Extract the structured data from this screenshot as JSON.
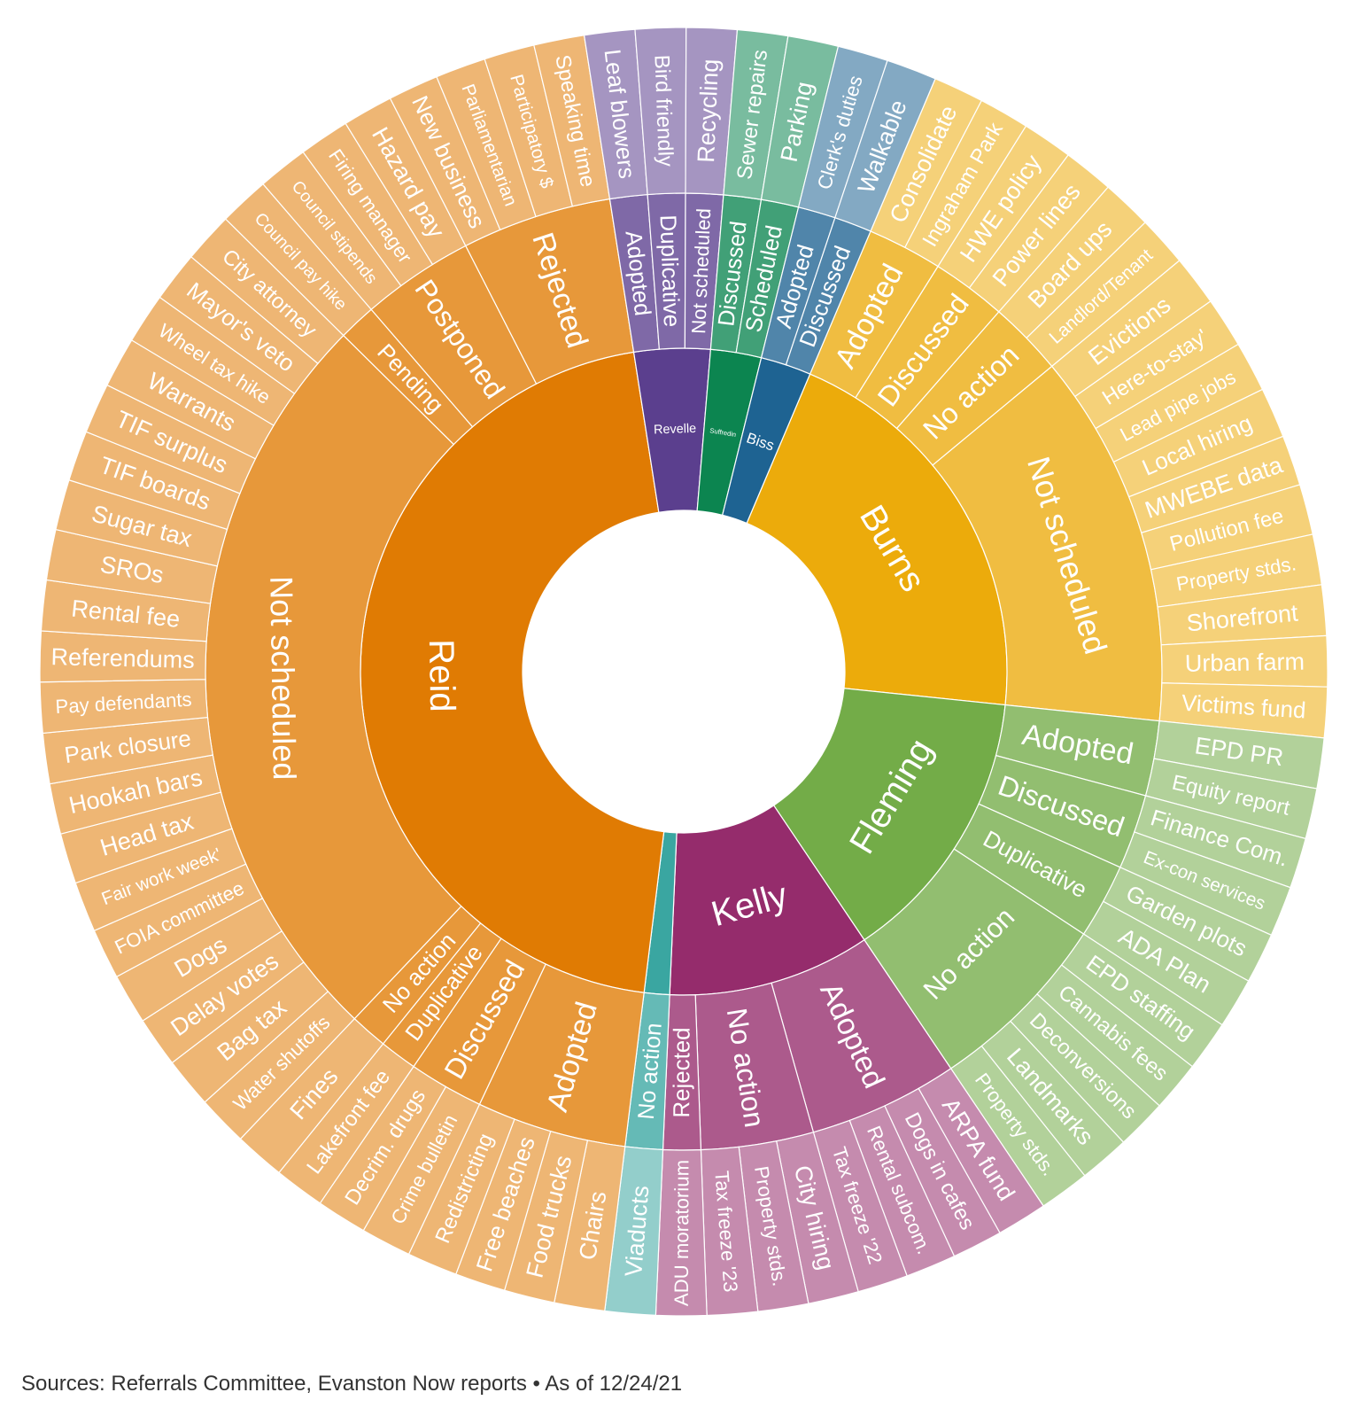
{
  "footer": {
    "source": "Sources: Referrals Committee, Evanston Now reports • As of 12/24/21"
  },
  "chart_data": {
    "type": "sunburst",
    "title": "",
    "start_angle_deg": 23,
    "members": [
      {
        "name": "Burns",
        "color": "#ECAB0B",
        "children": [
          {
            "name": "Adopted",
            "items": [
              "Consolidate",
              "Ingraham Park"
            ]
          },
          {
            "name": "Discussed",
            "items": [
              "HWE policy",
              "Power lines"
            ]
          },
          {
            "name": "No action",
            "items": [
              "Board ups",
              "Landlord/Tenant"
            ]
          },
          {
            "name": "Not scheduled",
            "items": [
              "Evictions",
              "Here-to-stay'",
              "Lead pipe jobs",
              "Local hiring",
              "MWEBE data",
              "Pollution fee",
              "Property stds.",
              "Shorefront",
              "Urban farm",
              "Victims fund"
            ]
          }
        ]
      },
      {
        "name": "Fleming",
        "color": "#73AC48",
        "children": [
          {
            "name": "Adopted",
            "items": [
              "EPD PR",
              "Equity report"
            ]
          },
          {
            "name": "Discussed",
            "items": [
              "Finance Com.",
              "Ex-con services"
            ]
          },
          {
            "name": "Duplicative",
            "items": [
              "Garden plots",
              "ADA Plan"
            ]
          },
          {
            "name": "No action",
            "items": [
              "EPD staffing",
              "Cannabis fees",
              "Deconversions",
              "Landmarks",
              "Property stds."
            ]
          }
        ]
      },
      {
        "name": "Kelly",
        "color": "#952C6C",
        "children": [
          {
            "name": "Adopted",
            "items": [
              "ARPA fund",
              "Dogs in cafes",
              "Rental subcom.",
              "Tax freeze '22"
            ]
          },
          {
            "name": "No action",
            "items": [
              "City hiring",
              "Property stds.",
              "Tax freeze '23"
            ]
          },
          {
            "name": "Rejected",
            "items": [
              "ADU moratorium"
            ]
          }
        ]
      },
      {
        "name": "",
        "color": "#3AA6A1",
        "children": [
          {
            "name": "No action",
            "items": [
              "Viaducts"
            ]
          }
        ]
      },
      {
        "name": "Reid",
        "color": "#E07B03",
        "children": [
          {
            "name": "Adopted",
            "items": [
              "Chairs",
              "Food trucks",
              "Free beaches",
              "Redistricting"
            ]
          },
          {
            "name": "Discussed",
            "items": [
              "Crime bulletin",
              "Decrim. drugs"
            ]
          },
          {
            "name": "Duplicative",
            "items": [
              "Lakefront fee"
            ]
          },
          {
            "name": "No action",
            "items": [
              "Fines"
            ]
          },
          {
            "name": "Not scheduled",
            "items": [
              "Water shutoffs",
              "Bag tax",
              "Delay votes",
              "Dogs",
              "FOIA committee",
              "Fair work week'",
              "Head tax",
              "Hookah bars",
              "Park closure",
              "Pay defendants",
              "Referendums",
              "Rental fee",
              "SROs",
              "Sugar tax",
              "TIF boards",
              "TIF surplus",
              "Warrants",
              "Wheel tax hike",
              "Mayor's veto",
              "City attorney"
            ]
          },
          {
            "name": "Pending",
            "items": [
              "Council pay hike"
            ]
          },
          {
            "name": "Postponed",
            "items": [
              "Council stipends",
              "Firing manager",
              "Hazard pay"
            ]
          },
          {
            "name": "Rejected",
            "items": [
              "New business",
              "Parliamentarian",
              "Participatory $",
              "Speaking time"
            ]
          }
        ]
      },
      {
        "name": "Revelle",
        "color": "#5B3F8E",
        "children": [
          {
            "name": "Adopted",
            "items": [
              "Leaf blowers"
            ]
          },
          {
            "name": "Duplicative",
            "items": [
              "Bird friendly"
            ]
          },
          {
            "name": "Not scheduled",
            "items": [
              "Recycling"
            ]
          }
        ]
      },
      {
        "name": "Suffredin",
        "color": "#0C8550",
        "children": [
          {
            "name": "Discussed",
            "items": [
              "Sewer repairs"
            ]
          },
          {
            "name": "Scheduled",
            "items": [
              "Parking"
            ]
          }
        ]
      },
      {
        "name": "Biss",
        "color": "#1E6392",
        "children": [
          {
            "name": "Adopted",
            "items": [
              "Clerk's duties"
            ]
          },
          {
            "name": "Discussed",
            "items": [
              "Walkable"
            ]
          }
        ]
      }
    ]
  }
}
